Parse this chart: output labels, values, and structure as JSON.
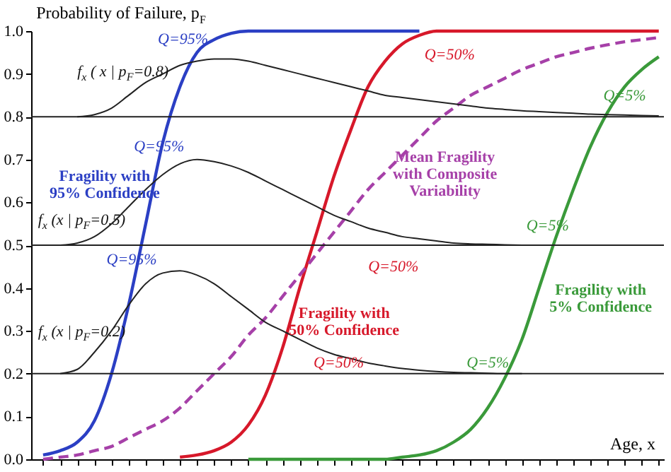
{
  "chart_data": {
    "type": "line",
    "ylabel": "Probability of Failure, p$_{F}$",
    "xlabel": "Age, x",
    "categories": [
      null,
      null,
      null,
      null,
      null,
      null,
      null,
      null,
      null,
      null,
      null,
      null,
      null,
      null,
      null,
      null,
      null,
      null,
      null,
      null,
      null,
      null,
      null,
      null,
      null,
      null,
      null,
      null,
      null,
      null,
      null,
      null,
      null,
      null,
      null,
      null,
      null
    ],
    "ylim": [
      0,
      1
    ],
    "yticks": [
      {
        "value": 0,
        "label": "0.0"
      },
      0.1,
      0.2,
      0.3,
      0.4,
      0.5,
      0.6,
      0.7,
      0.8,
      0.9,
      {
        "value": 1,
        "label": "1.0"
      }
    ],
    "tick_labels": "y",
    "series": [
      {
        "name": "Fragility with 95% Confidence",
        "color": "#2b3fc4",
        "values": [
          0.01,
          0.02,
          0.04,
          0.09,
          0.2,
          0.36,
          0.55,
          0.74,
          0.87,
          0.95,
          0.98,
          0.995,
          1,
          1,
          1,
          1,
          1,
          1,
          1,
          1,
          1,
          1,
          1,
          null,
          null,
          null,
          null,
          null,
          null,
          null,
          null,
          null,
          null,
          null,
          null,
          null,
          null
        ]
      },
      {
        "name": "Fragility with 50% Confidence",
        "color": "#d7182a",
        "values": [
          null,
          null,
          null,
          null,
          null,
          null,
          null,
          null,
          0.005,
          0.01,
          0.02,
          0.04,
          0.08,
          0.15,
          0.26,
          0.4,
          0.53,
          0.66,
          0.77,
          0.87,
          0.93,
          0.97,
          0.99,
          1,
          1,
          1,
          1,
          1,
          1,
          1,
          1,
          1,
          1,
          1,
          1,
          1,
          1
        ]
      },
      {
        "name": "Fragility with 5% Confidence",
        "color": "#3a9a3a",
        "values": [
          null,
          null,
          null,
          null,
          null,
          null,
          null,
          null,
          null,
          null,
          null,
          null,
          0,
          0,
          0,
          0,
          0,
          0,
          0,
          0,
          0,
          0.005,
          0.01,
          0.02,
          0.04,
          0.07,
          0.12,
          0.19,
          0.28,
          0.4,
          0.52,
          0.63,
          0.73,
          0.81,
          0.87,
          0.91,
          0.94
        ]
      },
      {
        "name": "Mean Fragility with Composite Variability",
        "color": "#a640a8",
        "line_style": "dashed",
        "values": [
          0,
          0.005,
          0.01,
          0.02,
          0.03,
          0.05,
          0.07,
          0.09,
          0.12,
          0.16,
          0.2,
          0.24,
          0.29,
          0.33,
          0.38,
          0.43,
          0.48,
          0.53,
          0.58,
          0.63,
          0.67,
          0.71,
          0.75,
          0.79,
          0.82,
          0.85,
          0.87,
          0.89,
          0.91,
          0.925,
          0.94,
          0.95,
          0.96,
          0.968,
          0.975,
          0.98,
          0.985
        ]
      },
      {
        "color": "#222222",
        "values": [
          null,
          0.2,
          0.21,
          0.25,
          0.3,
          0.36,
          0.41,
          0.435,
          0.44,
          0.43,
          0.41,
          0.38,
          0.35,
          0.32,
          0.3,
          0.28,
          0.26,
          0.245,
          0.235,
          0.225,
          0.218,
          0.212,
          0.208,
          0.205,
          0.203,
          0.202,
          0.201,
          0.2,
          0.2,
          null,
          null,
          null,
          null,
          null,
          null,
          null,
          null
        ]
      },
      {
        "color": "#222222",
        "values": [
          null,
          0.5,
          0.505,
          0.52,
          0.55,
          0.59,
          0.63,
          0.665,
          0.69,
          0.7,
          0.695,
          0.685,
          0.67,
          0.65,
          0.63,
          0.61,
          0.59,
          0.57,
          0.555,
          0.54,
          0.53,
          0.52,
          0.515,
          0.51,
          0.505,
          0.503,
          0.502,
          0.501,
          0.5,
          null,
          null,
          null,
          null,
          null,
          null,
          null,
          null
        ]
      },
      {
        "color": "#222222",
        "values": [
          null,
          null,
          0.8,
          0.805,
          0.82,
          0.85,
          0.88,
          0.9,
          0.92,
          0.93,
          0.935,
          0.935,
          0.93,
          0.92,
          0.91,
          0.9,
          0.89,
          0.88,
          0.87,
          0.86,
          0.85,
          0.845,
          0.84,
          0.835,
          0.83,
          0.825,
          0.82,
          0.817,
          0.814,
          0.812,
          0.81,
          0.808,
          0.806,
          0.805,
          0.804,
          0.803,
          0.802
        ]
      }
    ],
    "ref_lines": [
      {
        "axis": "y",
        "value": 0.2,
        "color": "#222222"
      },
      {
        "axis": "y",
        "value": 0.5,
        "color": "#222222"
      },
      {
        "axis": "y",
        "value": 0.8,
        "color": "#222222"
      }
    ],
    "annotations": [
      "f$_{x}$ ( x | p$_{F}$=0.8)",
      "f$_{x}$ (x | p$_{F}$=0.5)",
      "f$_{x}$ (x | p$_{F}$=0.2)",
      "Q=95%",
      "Q=50%",
      "Q=5%",
      "Q=95%",
      "Q=50%",
      "Q=5%",
      "Q=95%",
      "Q=50%",
      "Q=5%"
    ]
  }
}
